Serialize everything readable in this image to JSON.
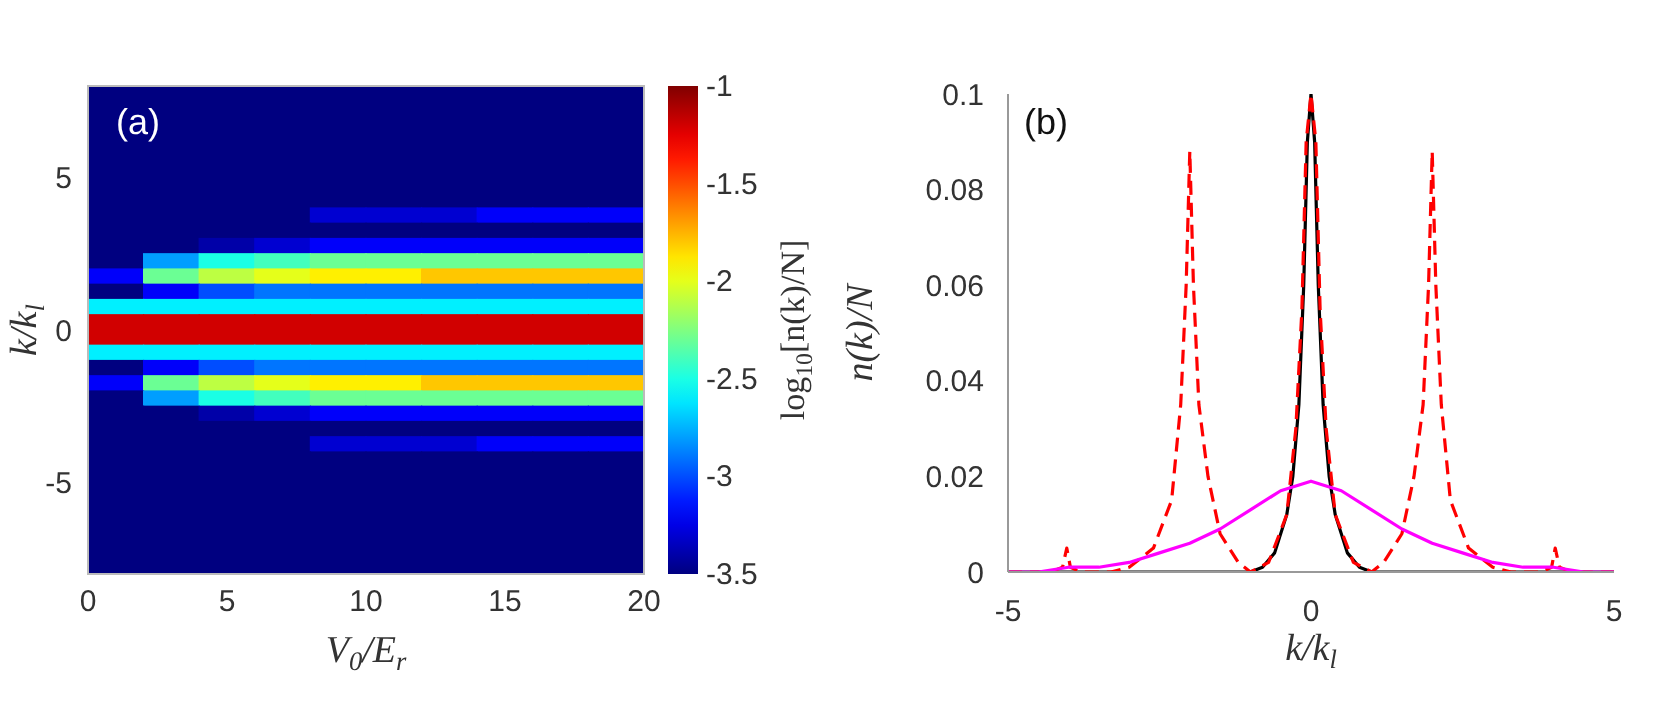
{
  "chart_data": [
    {
      "type": "heatmap",
      "annotations": [
        "(a)"
      ],
      "xlabel": "V$_{0}$/E$_{r}$",
      "ylabel": "k/k$_{l}$",
      "clabel": "log$_{10}$[n(k)/N]",
      "xlim": [
        0,
        20
      ],
      "xticks": [
        0,
        5,
        10,
        15,
        20
      ],
      "ylim": [
        -8,
        8
      ],
      "yticks": [
        -5,
        0,
        5
      ],
      "clim": [
        -3.5,
        -1
      ],
      "cticks": [
        -3.5,
        -3,
        -2.5,
        -2,
        -1.5,
        -1
      ],
      "cells": [
        [
          -3.5,
          -3.5,
          -3.5,
          -3.5,
          -3.5,
          -3.5,
          -3.5,
          -3.5,
          -3.5,
          -3.5
        ],
        [
          -3.5,
          -3.5,
          -3.5,
          -3.5,
          -3.5,
          -3.5,
          -3.5,
          -3.5,
          -3.5,
          -3.5
        ],
        [
          -3.5,
          -3.5,
          -3.5,
          -3.5,
          -3.5,
          -3.5,
          -3.5,
          -3.5,
          -3.5,
          -3.5
        ],
        [
          -3.5,
          -3.5,
          -3.5,
          -3.5,
          -3.5,
          -3.5,
          -3.5,
          -3.5,
          -3.5,
          -3.5
        ],
        [
          -3.5,
          -3.5,
          -3.5,
          -3.5,
          -3.5,
          -3.5,
          -3.5,
          -3.5,
          -3.5,
          -3.5
        ],
        [
          -3.5,
          -3.5,
          -3.5,
          -3.5,
          -3.5,
          -3.5,
          -3.5,
          -3.5,
          -3.5,
          -3.5
        ],
        [
          -3.5,
          -3.5,
          -3.5,
          -3.5,
          -3.5,
          -3.5,
          -3.5,
          -3.5,
          -3.5,
          -3.5
        ],
        [
          -3.5,
          -3.5,
          -3.5,
          -3.5,
          -3.5,
          -3.5,
          -3.5,
          -3.5,
          -3.5,
          -3.5
        ],
        [
          -3.5,
          -3.5,
          -3.5,
          -3.5,
          -3.3,
          -3.3,
          -3.3,
          -3.2,
          -3.2,
          -3.2
        ],
        [
          -3.5,
          -3.5,
          -3.5,
          -3.5,
          -3.5,
          -3.5,
          -3.5,
          -3.5,
          -3.5,
          -3.5
        ],
        [
          -3.5,
          -3.5,
          -3.4,
          -3.3,
          -3.2,
          -3.2,
          -3.2,
          -3.2,
          -3.2,
          -3.2
        ],
        [
          -3.5,
          -2.8,
          -2.5,
          -2.4,
          -2.3,
          -2.3,
          -2.3,
          -2.3,
          -2.3,
          -2.3
        ],
        [
          -3.2,
          -2.3,
          -2.1,
          -2,
          -1.9,
          -1.9,
          -1.8,
          -1.8,
          -1.8,
          -1.8
        ],
        [
          -3.5,
          -3.2,
          -3,
          -2.9,
          -2.9,
          -2.9,
          -2.9,
          -2.9,
          -2.9,
          -2.9
        ],
        [
          -2.6,
          -2.6,
          -2.6,
          -2.6,
          -2.6,
          -2.6,
          -2.6,
          -2.6,
          -2.6,
          -2.6
        ],
        [
          -1.2,
          -1.2,
          -1.2,
          -1.2,
          -1.2,
          -1.2,
          -1.2,
          -1.2,
          -1.2,
          -1.2
        ],
        [
          -1.2,
          -1.2,
          -1.2,
          -1.2,
          -1.2,
          -1.2,
          -1.2,
          -1.2,
          -1.2,
          -1.2
        ],
        [
          -2.6,
          -2.6,
          -2.6,
          -2.6,
          -2.6,
          -2.6,
          -2.6,
          -2.6,
          -2.6,
          -2.6
        ],
        [
          -3.5,
          -3.2,
          -3,
          -2.9,
          -2.9,
          -2.9,
          -2.9,
          -2.9,
          -2.9,
          -2.9
        ],
        [
          -3.2,
          -2.3,
          -2.1,
          -2,
          -1.9,
          -1.9,
          -1.8,
          -1.8,
          -1.8,
          -1.8
        ],
        [
          -3.5,
          -2.8,
          -2.5,
          -2.4,
          -2.3,
          -2.3,
          -2.3,
          -2.3,
          -2.3,
          -2.3
        ],
        [
          -3.5,
          -3.5,
          -3.4,
          -3.3,
          -3.2,
          -3.2,
          -3.2,
          -3.2,
          -3.2,
          -3.2
        ],
        [
          -3.5,
          -3.5,
          -3.5,
          -3.5,
          -3.5,
          -3.5,
          -3.5,
          -3.5,
          -3.5,
          -3.5
        ],
        [
          -3.5,
          -3.5,
          -3.5,
          -3.5,
          -3.3,
          -3.3,
          -3.3,
          -3.2,
          -3.2,
          -3.2
        ],
        [
          -3.5,
          -3.5,
          -3.5,
          -3.5,
          -3.5,
          -3.5,
          -3.5,
          -3.5,
          -3.5,
          -3.5
        ],
        [
          -3.5,
          -3.5,
          -3.5,
          -3.5,
          -3.5,
          -3.5,
          -3.5,
          -3.5,
          -3.5,
          -3.5
        ],
        [
          -3.5,
          -3.5,
          -3.5,
          -3.5,
          -3.5,
          -3.5,
          -3.5,
          -3.5,
          -3.5,
          -3.5
        ],
        [
          -3.5,
          -3.5,
          -3.5,
          -3.5,
          -3.5,
          -3.5,
          -3.5,
          -3.5,
          -3.5,
          -3.5
        ],
        [
          -3.5,
          -3.5,
          -3.5,
          -3.5,
          -3.5,
          -3.5,
          -3.5,
          -3.5,
          -3.5,
          -3.5
        ],
        [
          -3.5,
          -3.5,
          -3.5,
          -3.5,
          -3.5,
          -3.5,
          -3.5,
          -3.5,
          -3.5,
          -3.5
        ],
        [
          -3.5,
          -3.5,
          -3.5,
          -3.5,
          -3.5,
          -3.5,
          -3.5,
          -3.5,
          -3.5,
          -3.5
        ],
        [
          -3.5,
          -3.5,
          -3.5,
          -3.5,
          -3.5,
          -3.5,
          -3.5,
          -3.5,
          -3.5,
          -3.5
        ]
      ]
    },
    {
      "type": "line",
      "annotations": [
        "(b)"
      ],
      "xlabel": "k/k$_{l}$",
      "ylabel": "n(k)/N",
      "xlim": [
        -5,
        5
      ],
      "xticks": [
        -5,
        0,
        5
      ],
      "ylim": [
        0,
        0.1
      ],
      "yticks": [
        0,
        0.02,
        0.04,
        0.06,
        0.08,
        0.1
      ],
      "marker": "none",
      "series": [
        {
          "color": "#000000",
          "line_style": "solid",
          "x": [
            -5,
            -1.5,
            -1,
            -0.8,
            -0.6,
            -0.4,
            -0.3,
            -0.2,
            -0.12,
            -0.06,
            0,
            0.06,
            0.12,
            0.2,
            0.3,
            0.4,
            0.6,
            0.8,
            1,
            1.5,
            5
          ],
          "values": [
            0,
            0,
            0,
            0.001,
            0.004,
            0.012,
            0.02,
            0.035,
            0.06,
            0.09,
            0.1,
            0.09,
            0.06,
            0.035,
            0.02,
            0.012,
            0.004,
            0.001,
            0,
            0,
            0
          ]
        },
        {
          "color": "#ff0000",
          "line_style": "dashed",
          "x": [
            -5,
            -4.3,
            -4.1,
            -4.03,
            -3.97,
            -3.8,
            -3.3,
            -3,
            -2.6,
            -2.3,
            -2.15,
            -2.06,
            -2,
            -1.94,
            -1.85,
            -1.7,
            -1.5,
            -1.2,
            -1,
            -0.7,
            -0.4,
            -0.25,
            -0.15,
            -0.08,
            0,
            0.08,
            0.15,
            0.25,
            0.4,
            0.7,
            1,
            1.2,
            1.5,
            1.7,
            1.85,
            1.94,
            2,
            2.06,
            2.15,
            2.3,
            2.6,
            3,
            3.3,
            3.8,
            3.97,
            4.03,
            4.1,
            4.3,
            5
          ],
          "values": [
            0,
            0,
            0.001,
            0.005,
            0.001,
            0,
            0,
            0.001,
            0.005,
            0.015,
            0.035,
            0.06,
            0.088,
            0.06,
            0.035,
            0.02,
            0.008,
            0.002,
            0,
            0.002,
            0.012,
            0.03,
            0.055,
            0.09,
            0.1,
            0.09,
            0.055,
            0.03,
            0.012,
            0.002,
            0,
            0.002,
            0.008,
            0.02,
            0.035,
            0.06,
            0.088,
            0.06,
            0.035,
            0.015,
            0.005,
            0.001,
            0,
            0,
            0.001,
            0.005,
            0.001,
            0,
            0
          ]
        },
        {
          "color": "#ff00ff",
          "line_style": "solid",
          "x": [
            -5,
            -4.5,
            -4,
            -3.5,
            -3,
            -2.5,
            -2,
            -1.5,
            -1,
            -0.5,
            0,
            0.5,
            1,
            1.5,
            2,
            2.5,
            3,
            3.5,
            4,
            4.5,
            5
          ],
          "values": [
            0,
            0,
            0.001,
            0.001,
            0.002,
            0.004,
            0.006,
            0.009,
            0.013,
            0.017,
            0.019,
            0.017,
            0.013,
            0.009,
            0.006,
            0.004,
            0.002,
            0.001,
            0.001,
            0,
            0
          ]
        }
      ]
    }
  ]
}
